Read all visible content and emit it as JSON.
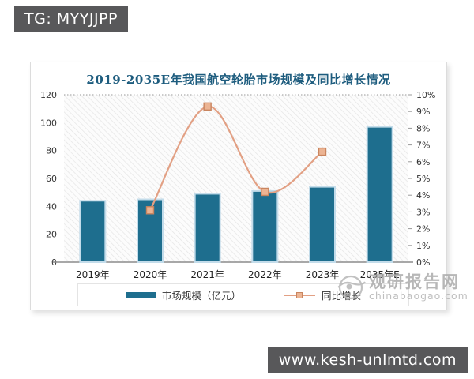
{
  "badges": {
    "top_left": "TG: MYYJJPP",
    "bottom_right": "www.kesh-unlmtd.com"
  },
  "watermark": {
    "name": "观研报告网",
    "domain": "chinabaogao.com"
  },
  "chart": {
    "title": "2019-2035E年我国航空轮胎市场规模及同比增长情况",
    "legend": {
      "bar_label": "市场规模（亿元）",
      "line_label": "同比增长"
    }
  },
  "chart_data": {
    "type": "bar",
    "subtype": "bar+line combo, dual axis",
    "title": "2019-2035E年我国航空轮胎市场规模及同比增长情况",
    "categories": [
      "2019年",
      "2020年",
      "2021年",
      "2022年",
      "2023年",
      "2035年E"
    ],
    "series": [
      {
        "name": "市场规模（亿元）",
        "type": "bar",
        "axis": "left",
        "values": [
          44,
          45,
          49,
          51,
          54,
          97
        ]
      },
      {
        "name": "同比增长",
        "type": "line",
        "axis": "right",
        "values": [
          null,
          3.1,
          9.3,
          4.2,
          6.6,
          null
        ]
      }
    ],
    "left_axis": {
      "min": 0,
      "max": 120,
      "step": 20,
      "unit": ""
    },
    "right_axis": {
      "min": 0,
      "max": 10,
      "step": 1,
      "unit": "%"
    },
    "grid": "top dotted line only, hatched plot background",
    "legend_position": "bottom",
    "colors": {
      "bar": "#1e6e8e",
      "bar_edge": "#c3dcea",
      "line": "#e2a084",
      "marker_fill": "#ecb493",
      "marker_stroke": "#c9855f",
      "title": "#1d5c7e",
      "axis_text": "#333333",
      "badge_bg": "#58585a"
    }
  }
}
